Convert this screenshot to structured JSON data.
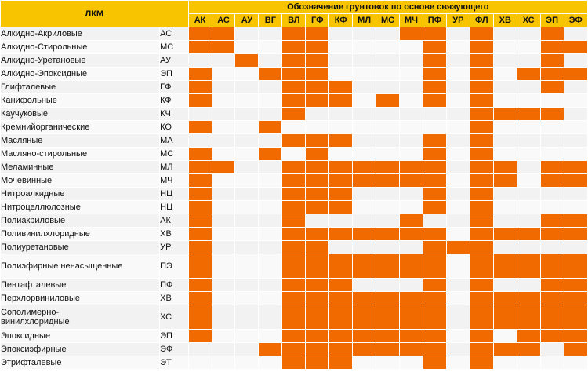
{
  "header": {
    "title": "Обозначение грунтовок по основе связующего",
    "lkm_label": "ЛКМ"
  },
  "primer_codes": [
    "АК",
    "АС",
    "АУ",
    "ВГ",
    "ВЛ",
    "ГФ",
    "КФ",
    "МЛ",
    "МС",
    "МЧ",
    "ПФ",
    "УР",
    "ФЛ",
    "ХВ",
    "ХС",
    "ЭП",
    "ЭФ"
  ],
  "rows": [
    {
      "name": "Алкидно-Акриловые",
      "code": "АС",
      "cells": [
        1,
        1,
        0,
        0,
        1,
        1,
        0,
        0,
        0,
        1,
        1,
        0,
        1,
        0,
        0,
        1,
        0
      ]
    },
    {
      "name": "Алкидно-Стирольные",
      "code": "МС",
      "cells": [
        1,
        1,
        0,
        0,
        1,
        1,
        0,
        0,
        0,
        0,
        1,
        0,
        1,
        0,
        0,
        1,
        1
      ]
    },
    {
      "name": "Алкидно-Уретановые",
      "code": "АУ",
      "cells": [
        0,
        0,
        1,
        0,
        1,
        1,
        0,
        0,
        0,
        0,
        1,
        0,
        1,
        0,
        0,
        1,
        0
      ]
    },
    {
      "name": "Алкидно-Эпоксидные",
      "code": "ЭП",
      "cells": [
        1,
        0,
        0,
        1,
        1,
        1,
        0,
        0,
        0,
        0,
        1,
        0,
        1,
        0,
        1,
        1,
        1
      ]
    },
    {
      "name": "Глифталевые",
      "code": "ГФ",
      "cells": [
        1,
        0,
        0,
        0,
        1,
        1,
        1,
        0,
        0,
        0,
        1,
        0,
        1,
        0,
        0,
        1,
        0
      ]
    },
    {
      "name": "Канифольные",
      "code": "КФ",
      "cells": [
        1,
        0,
        0,
        0,
        1,
        1,
        1,
        0,
        1,
        0,
        1,
        0,
        1,
        0,
        0,
        0,
        0
      ]
    },
    {
      "name": "Каучуковые",
      "code": "КЧ",
      "cells": [
        0,
        0,
        0,
        0,
        1,
        0,
        0,
        0,
        0,
        0,
        0,
        0,
        1,
        1,
        1,
        1,
        0
      ]
    },
    {
      "name": "Кремнийорганические",
      "code": "КО",
      "cells": [
        1,
        0,
        0,
        1,
        0,
        0,
        0,
        0,
        0,
        0,
        0,
        0,
        1,
        0,
        0,
        0,
        0
      ]
    },
    {
      "name": "Масляные",
      "code": "МА",
      "cells": [
        0,
        0,
        0,
        0,
        1,
        1,
        1,
        0,
        0,
        0,
        1,
        0,
        1,
        0,
        0,
        0,
        0
      ]
    },
    {
      "name": "Масляно-стирольные",
      "code": "МС",
      "cells": [
        1,
        0,
        0,
        1,
        0,
        1,
        0,
        0,
        0,
        0,
        1,
        0,
        1,
        0,
        0,
        0,
        0
      ]
    },
    {
      "name": "Меламинные",
      "code": "МЛ",
      "cells": [
        1,
        1,
        0,
        0,
        1,
        1,
        1,
        1,
        1,
        1,
        1,
        0,
        1,
        1,
        0,
        1,
        1
      ]
    },
    {
      "name": "Мочевинные",
      "code": "МЧ",
      "cells": [
        1,
        0,
        0,
        0,
        1,
        1,
        1,
        1,
        1,
        1,
        1,
        0,
        1,
        1,
        0,
        1,
        1
      ]
    },
    {
      "name": "Нитроалкидные",
      "code": "НЦ",
      "cells": [
        1,
        0,
        0,
        0,
        1,
        1,
        1,
        0,
        0,
        0,
        1,
        0,
        1,
        0,
        0,
        0,
        0
      ]
    },
    {
      "name": "Нитроцеллюлозные",
      "code": "НЦ",
      "cells": [
        1,
        0,
        0,
        0,
        1,
        1,
        1,
        0,
        0,
        0,
        1,
        0,
        1,
        0,
        0,
        0,
        0
      ]
    },
    {
      "name": "Полиакриловые",
      "code": "АК",
      "cells": [
        1,
        0,
        0,
        0,
        1,
        0,
        0,
        0,
        0,
        1,
        0,
        0,
        1,
        0,
        0,
        1,
        1
      ]
    },
    {
      "name": "Поливинилхлоридные",
      "code": "ХВ",
      "cells": [
        1,
        0,
        0,
        0,
        1,
        1,
        1,
        1,
        1,
        1,
        1,
        0,
        1,
        1,
        1,
        1,
        1
      ]
    },
    {
      "name": "Полиуретановые",
      "code": "УР",
      "cells": [
        1,
        0,
        0,
        0,
        1,
        1,
        0,
        0,
        0,
        0,
        1,
        1,
        1,
        0,
        0,
        0,
        0
      ]
    },
    {
      "name": "Полиэфирные ненасыщенные",
      "code": "ПЭ",
      "cells": [
        1,
        0,
        0,
        0,
        1,
        1,
        1,
        1,
        1,
        1,
        1,
        0,
        1,
        1,
        1,
        1,
        1
      ]
    },
    {
      "name": "Пентафталевые",
      "code": "ПФ",
      "cells": [
        1,
        0,
        0,
        0,
        1,
        1,
        1,
        0,
        0,
        0,
        1,
        0,
        1,
        0,
        0,
        1,
        1
      ]
    },
    {
      "name": "Перхлорвиниловые",
      "code": "ХВ",
      "cells": [
        1,
        0,
        0,
        0,
        1,
        1,
        1,
        1,
        1,
        1,
        1,
        0,
        1,
        1,
        1,
        1,
        1
      ]
    },
    {
      "name": "Сополимерно-винилхлоридные",
      "code": "ХС",
      "cells": [
        1,
        0,
        0,
        0,
        1,
        1,
        1,
        1,
        1,
        1,
        1,
        0,
        1,
        1,
        1,
        1,
        1
      ]
    },
    {
      "name": "Эпоксидные",
      "code": "ЭП",
      "cells": [
        1,
        0,
        0,
        0,
        1,
        1,
        1,
        1,
        1,
        1,
        1,
        0,
        1,
        0,
        1,
        1,
        1
      ]
    },
    {
      "name": "Эпоксиэфирные",
      "code": "ЭФ",
      "cells": [
        0,
        0,
        0,
        1,
        1,
        1,
        1,
        1,
        1,
        1,
        1,
        0,
        1,
        1,
        1,
        0,
        1
      ]
    },
    {
      "name": "Этрифталевые",
      "code": "ЭТ",
      "cells": [
        0,
        0,
        0,
        0,
        1,
        1,
        1,
        0,
        0,
        0,
        1,
        0,
        1,
        0,
        0,
        0,
        0
      ]
    }
  ]
}
